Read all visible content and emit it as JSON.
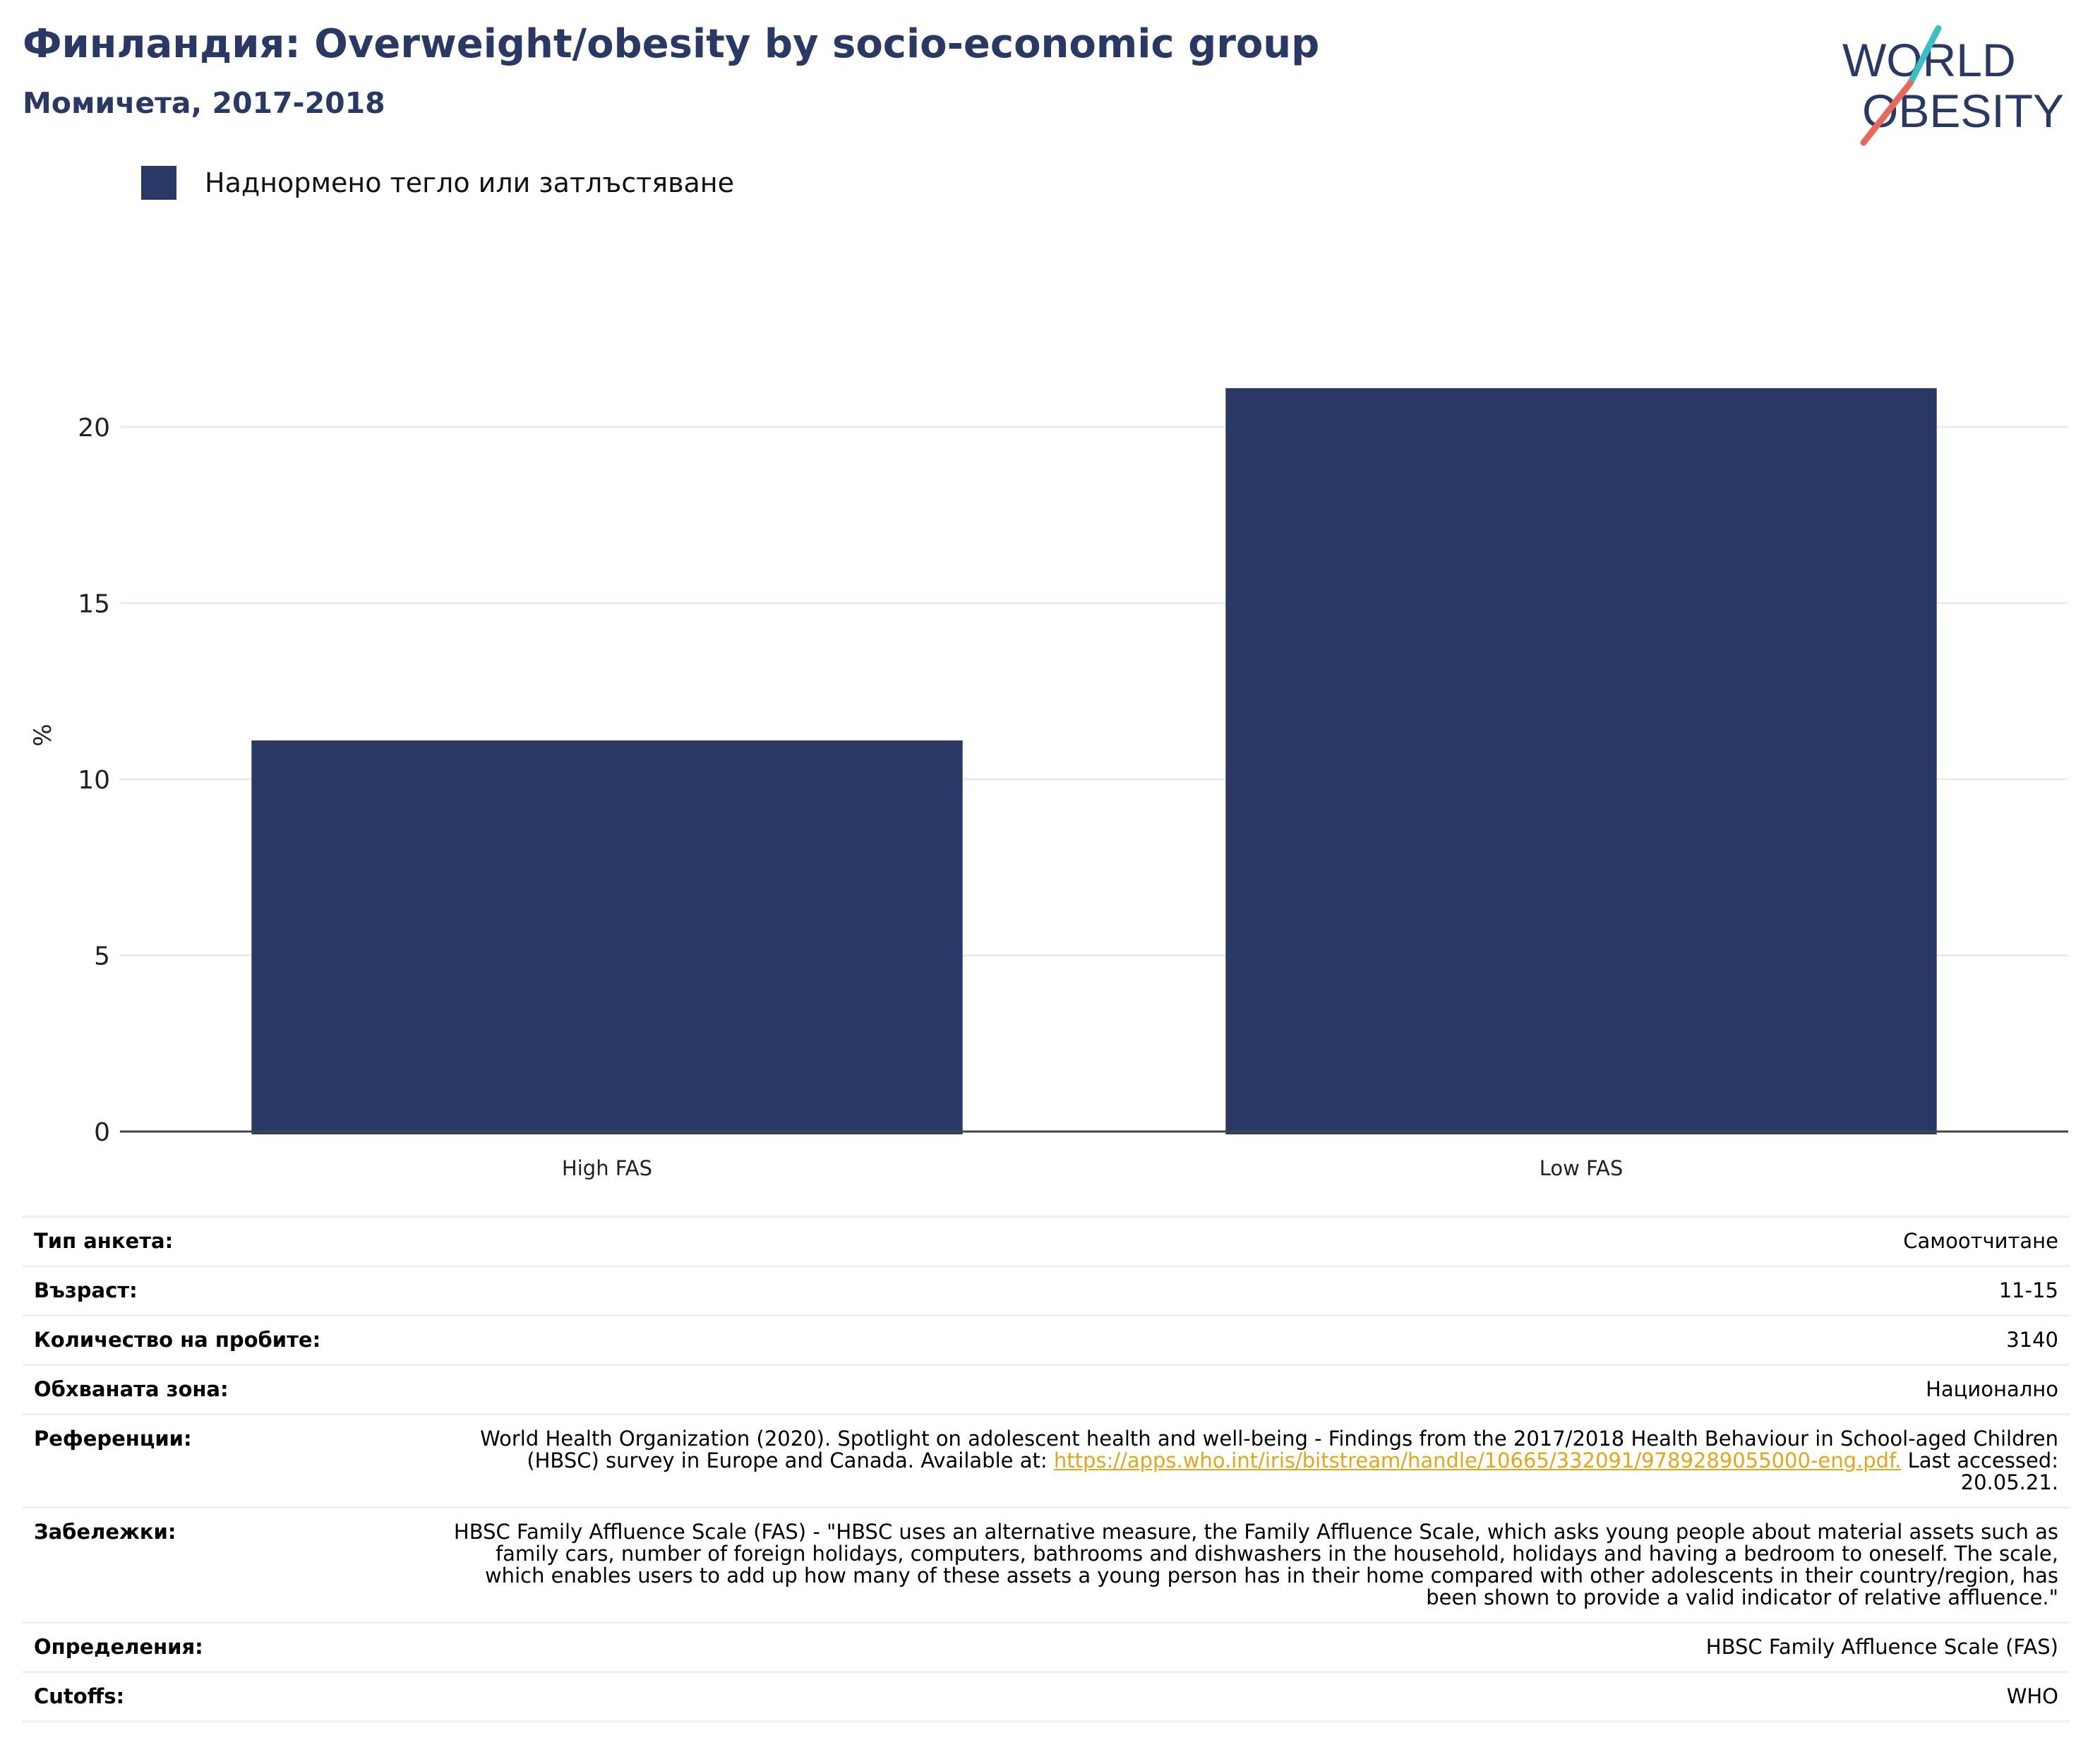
{
  "header": {
    "title": "Финландия: Overweight/obesity by socio-economic group",
    "subtitle": "Момичета, 2017-2018"
  },
  "logo": {
    "line1": "WORLD",
    "line2": "OBESITY",
    "color_text": "#2a3866",
    "color_slash_top": "#3bbfc4",
    "color_slash_bottom": "#e8685a"
  },
  "legend": {
    "label": "Наднормено тегло или затлъстяване",
    "color": "#2a3866"
  },
  "chart_data": {
    "type": "bar",
    "categories": [
      "High FAS",
      "Low FAS"
    ],
    "series": [
      {
        "name": "Наднормено тегло или затлъстяване",
        "values": [
          11.1,
          21.1
        ],
        "color": "#2a3866"
      }
    ],
    "ylabel": "%",
    "xlabel": "",
    "ylim": [
      0,
      22.5
    ],
    "yticks": [
      0,
      5,
      10,
      15,
      20
    ],
    "grid": true,
    "legend_position": "top-left"
  },
  "meta": {
    "survey_type": {
      "label": "Тип анкета:",
      "value": "Самоотчитане"
    },
    "age": {
      "label": "Възраст:",
      "value": "11-15"
    },
    "sample_size": {
      "label": "Количество на пробите:",
      "value": "3140"
    },
    "coverage": {
      "label": "Обхваната зона:",
      "value": "Национално"
    },
    "references": {
      "label": "Референции:",
      "text_before": "World Health Organization (2020). Spotlight on adolescent health and well-being - Findings from the 2017/2018 Health Behaviour in School-aged Children (HBSC) survey in Europe and Canada. Available at: ",
      "link": "https://apps.who.int/iris/bitstream/handle/10665/332091/9789289055000-eng.pdf.",
      "text_after": " Last accessed: 20.05.21."
    },
    "notes": {
      "label": "Забележки:",
      "value": "HBSC Family Affluence Scale (FAS) - \"HBSC uses an alternative measure, the Family Affluence Scale, which asks young people about material assets such as family cars, number of foreign holidays, computers, bathrooms and dishwashers in the household, holidays and having a bedroom to oneself. The scale, which enables users to add up how many of these assets a young person has in their home compared with other adolescents in their country/region, has been shown to provide a valid indicator of relative affluence.\""
    },
    "definitions": {
      "label": "Определения:",
      "value": "HBSC Family Affluence Scale (FAS)"
    },
    "cutoffs": {
      "label": "Cutoffs:",
      "value": "WHO"
    }
  }
}
